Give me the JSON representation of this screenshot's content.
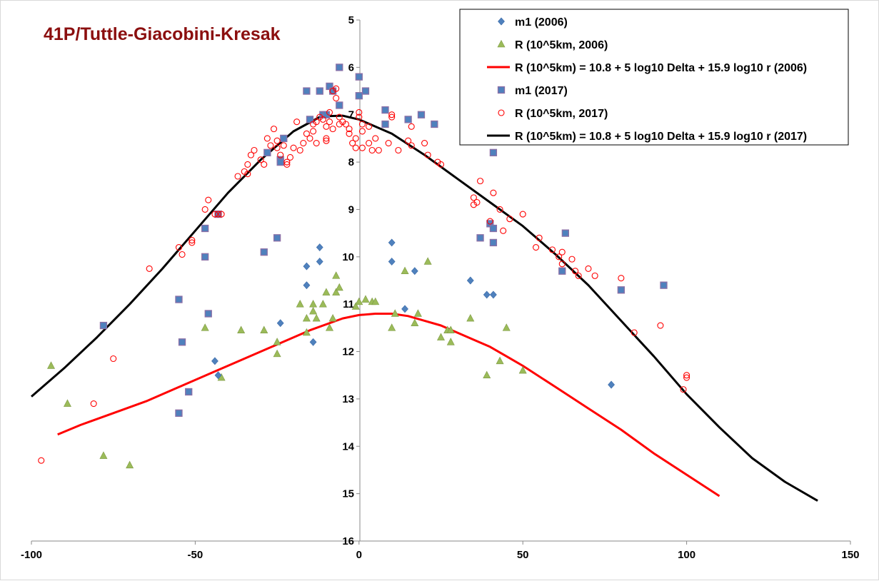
{
  "chart_data": {
    "type": "scatter",
    "title": "41P/Tuttle-Giacobini-Kresak",
    "xlabel": "",
    "ylabel": "",
    "xlim": [
      -100,
      150
    ],
    "ylim": [
      16,
      5
    ],
    "y_reversed": true,
    "grid": false,
    "legend_position": "top-right",
    "x_ticks": [
      -100,
      -50,
      0,
      50,
      100,
      150
    ],
    "y_ticks": [
      5,
      6,
      7,
      8,
      9,
      10,
      11,
      12,
      13,
      14,
      15,
      16
    ],
    "series": [
      {
        "name": "m1 (2006)",
        "marker": "diamond",
        "color": "#4f81bd",
        "points": [
          [
            -16,
            10.2
          ],
          [
            -16,
            10.6
          ],
          [
            -12,
            9.8
          ],
          [
            -12,
            10.1
          ],
          [
            -14,
            11.8
          ],
          [
            -24,
            11.4
          ],
          [
            -44,
            12.2
          ],
          [
            -43,
            12.5
          ],
          [
            10,
            9.7
          ],
          [
            10,
            10.1
          ],
          [
            17,
            10.3
          ],
          [
            14,
            11.1
          ],
          [
            34,
            10.5
          ],
          [
            39,
            10.8
          ],
          [
            41,
            10.8
          ],
          [
            77,
            12.7
          ]
        ]
      },
      {
        "name": "R (10^5km, 2006)",
        "marker": "triangle",
        "color": "#9bbb59",
        "points": [
          [
            -94,
            12.3
          ],
          [
            -89,
            13.1
          ],
          [
            -78,
            14.2
          ],
          [
            -70,
            14.4
          ],
          [
            -47,
            11.5
          ],
          [
            -42,
            12.55
          ],
          [
            -36,
            11.55
          ],
          [
            -29,
            11.55
          ],
          [
            -25,
            11.8
          ],
          [
            -25,
            12.05
          ],
          [
            -18,
            11.0
          ],
          [
            -16,
            11.3
          ],
          [
            -16,
            11.6
          ],
          [
            -14,
            11.0
          ],
          [
            -14,
            11.15
          ],
          [
            -13,
            11.3
          ],
          [
            -11,
            11.0
          ],
          [
            -10,
            10.75
          ],
          [
            -9,
            11.5
          ],
          [
            -8,
            11.3
          ],
          [
            -7,
            10.4
          ],
          [
            -7,
            10.75
          ],
          [
            -6,
            10.65
          ],
          [
            -1,
            11.05
          ],
          [
            0,
            10.95
          ],
          [
            2,
            10.9
          ],
          [
            4,
            10.95
          ],
          [
            5,
            10.95
          ],
          [
            10,
            11.5
          ],
          [
            11,
            11.2
          ],
          [
            14,
            10.3
          ],
          [
            17,
            11.4
          ],
          [
            18,
            11.2
          ],
          [
            21,
            10.1
          ],
          [
            25,
            11.7
          ],
          [
            27,
            11.55
          ],
          [
            28,
            11.55
          ],
          [
            28,
            11.8
          ],
          [
            34,
            11.3
          ],
          [
            39,
            12.5
          ],
          [
            43,
            12.2
          ],
          [
            45,
            11.5
          ],
          [
            50,
            12.4
          ]
        ]
      },
      {
        "name": "R (10^5km) = 10.8 + 5 log10 Delta + 15.9 log10 r (2006)",
        "marker": "line",
        "color": "#ff0000",
        "points": [
          [
            -92,
            13.75
          ],
          [
            -85,
            13.55
          ],
          [
            -75,
            13.3
          ],
          [
            -65,
            13.05
          ],
          [
            -55,
            12.75
          ],
          [
            -45,
            12.45
          ],
          [
            -35,
            12.15
          ],
          [
            -25,
            11.85
          ],
          [
            -15,
            11.55
          ],
          [
            -5,
            11.3
          ],
          [
            0,
            11.23
          ],
          [
            5,
            11.2
          ],
          [
            10,
            11.2
          ],
          [
            15,
            11.25
          ],
          [
            20,
            11.35
          ],
          [
            25,
            11.45
          ],
          [
            30,
            11.6
          ],
          [
            35,
            11.75
          ],
          [
            40,
            11.9
          ],
          [
            45,
            12.1
          ],
          [
            50,
            12.3
          ],
          [
            60,
            12.75
          ],
          [
            70,
            13.2
          ],
          [
            80,
            13.65
          ],
          [
            90,
            14.15
          ],
          [
            100,
            14.6
          ],
          [
            110,
            15.05
          ]
        ]
      },
      {
        "name": "m1 (2017)",
        "marker": "square",
        "color": "#4f81bd",
        "points": [
          [
            -78,
            11.45
          ],
          [
            -55,
            10.9
          ],
          [
            -55,
            13.3
          ],
          [
            -54,
            11.8
          ],
          [
            -52,
            12.85
          ],
          [
            -47,
            9.4
          ],
          [
            -47,
            10.0
          ],
          [
            -46,
            11.2
          ],
          [
            -43,
            9.1
          ],
          [
            -29,
            9.9
          ],
          [
            -28,
            7.8
          ],
          [
            -25,
            9.6
          ],
          [
            -24,
            7.95
          ],
          [
            -24,
            8.0
          ],
          [
            -23,
            7.5
          ],
          [
            -16,
            6.5
          ],
          [
            -15,
            7.1
          ],
          [
            -12,
            6.5
          ],
          [
            -11,
            7.0
          ],
          [
            -10,
            7.0
          ],
          [
            -9,
            6.4
          ],
          [
            -8,
            6.5
          ],
          [
            -6,
            6.8
          ],
          [
            -6,
            6.0
          ],
          [
            0,
            6.2
          ],
          [
            0,
            6.6
          ],
          [
            2,
            6.5
          ],
          [
            8,
            6.9
          ],
          [
            8,
            7.2
          ],
          [
            15,
            7.1
          ],
          [
            19,
            7.0
          ],
          [
            23,
            7.2
          ],
          [
            37,
            9.6
          ],
          [
            40,
            9.3
          ],
          [
            41,
            9.4
          ],
          [
            41,
            9.7
          ],
          [
            41,
            7.8
          ],
          [
            63,
            9.5
          ],
          [
            62,
            10.3
          ],
          [
            80,
            10.7
          ],
          [
            93,
            10.6
          ]
        ]
      },
      {
        "name": "R (10^5km, 2017)",
        "marker": "circle-open",
        "color": "#ff0000",
        "points": [
          [
            -97,
            14.3
          ],
          [
            -81,
            13.1
          ],
          [
            -75,
            12.15
          ],
          [
            -64,
            10.25
          ],
          [
            -55,
            9.8
          ],
          [
            -54,
            9.95
          ],
          [
            -51,
            9.7
          ],
          [
            -51,
            9.65
          ],
          [
            -47,
            9.0
          ],
          [
            -46,
            8.8
          ],
          [
            -44,
            9.1
          ],
          [
            -43,
            9.1
          ],
          [
            -42,
            9.1
          ],
          [
            -37,
            8.3
          ],
          [
            -35,
            8.2
          ],
          [
            -34,
            8.25
          ],
          [
            -34,
            8.05
          ],
          [
            -33,
            7.85
          ],
          [
            -32,
            7.75
          ],
          [
            -30,
            7.95
          ],
          [
            -29,
            8.05
          ],
          [
            -28,
            7.5
          ],
          [
            -27,
            7.65
          ],
          [
            -26,
            7.3
          ],
          [
            -25,
            7.55
          ],
          [
            -25,
            7.7
          ],
          [
            -24,
            7.85
          ],
          [
            -23,
            7.65
          ],
          [
            -22,
            8.05
          ],
          [
            -22,
            8.0
          ],
          [
            -21,
            7.9
          ],
          [
            -20,
            7.7
          ],
          [
            -19,
            7.15
          ],
          [
            -18,
            7.75
          ],
          [
            -17,
            7.6
          ],
          [
            -16,
            7.4
          ],
          [
            -15,
            7.5
          ],
          [
            -14,
            7.2
          ],
          [
            -14,
            7.35
          ],
          [
            -13,
            7.15
          ],
          [
            -13,
            7.6
          ],
          [
            -12,
            7.05
          ],
          [
            -11,
            7.1
          ],
          [
            -10,
            7.25
          ],
          [
            -10,
            7.5
          ],
          [
            -10,
            7.55
          ],
          [
            -9,
            6.95
          ],
          [
            -9,
            7.15
          ],
          [
            -8,
            7.3
          ],
          [
            -8,
            6.5
          ],
          [
            -7,
            6.45
          ],
          [
            -7,
            6.65
          ],
          [
            -6,
            7.05
          ],
          [
            -6,
            7.2
          ],
          [
            -5,
            7.15
          ],
          [
            -4,
            7.2
          ],
          [
            -3,
            7.3
          ],
          [
            -3,
            7.4
          ],
          [
            -2,
            7.6
          ],
          [
            -1,
            7.7
          ],
          [
            -1,
            7.5
          ],
          [
            0,
            6.95
          ],
          [
            0,
            7.05
          ],
          [
            1,
            7.2
          ],
          [
            1,
            7.35
          ],
          [
            1,
            7.7
          ],
          [
            3,
            7.25
          ],
          [
            3,
            7.6
          ],
          [
            4,
            7.75
          ],
          [
            5,
            7.5
          ],
          [
            6,
            7.75
          ],
          [
            9,
            7.6
          ],
          [
            10,
            7.0
          ],
          [
            10,
            7.05
          ],
          [
            12,
            7.75
          ],
          [
            15,
            7.55
          ],
          [
            16,
            7.25
          ],
          [
            16,
            7.65
          ],
          [
            20,
            7.6
          ],
          [
            21,
            7.85
          ],
          [
            24,
            8.0
          ],
          [
            25,
            8.05
          ],
          [
            35,
            8.75
          ],
          [
            35,
            8.9
          ],
          [
            36,
            8.85
          ],
          [
            37,
            8.4
          ],
          [
            40,
            9.25
          ],
          [
            41,
            8.65
          ],
          [
            43,
            9.0
          ],
          [
            44,
            9.45
          ],
          [
            46,
            9.2
          ],
          [
            50,
            9.1
          ],
          [
            54,
            9.8
          ],
          [
            55,
            9.6
          ],
          [
            59,
            9.85
          ],
          [
            61,
            10.0
          ],
          [
            62,
            9.9
          ],
          [
            62,
            10.15
          ],
          [
            65,
            10.05
          ],
          [
            66,
            10.3
          ],
          [
            67,
            10.4
          ],
          [
            70,
            10.25
          ],
          [
            72,
            10.4
          ],
          [
            80,
            10.45
          ],
          [
            84,
            11.6
          ],
          [
            92,
            11.45
          ],
          [
            99,
            12.8
          ],
          [
            100,
            12.5
          ],
          [
            100,
            12.55
          ]
        ]
      },
      {
        "name": "R (10^5km) = 10.8 + 5 log10 Delta + 15.9 log10 r (2017)",
        "marker": "line",
        "color": "#000000",
        "points": [
          [
            -100,
            12.95
          ],
          [
            -90,
            12.35
          ],
          [
            -80,
            11.7
          ],
          [
            -70,
            11.0
          ],
          [
            -60,
            10.25
          ],
          [
            -50,
            9.45
          ],
          [
            -40,
            8.65
          ],
          [
            -30,
            7.95
          ],
          [
            -20,
            7.35
          ],
          [
            -12,
            7.05
          ],
          [
            -10,
            7.03
          ],
          [
            -5,
            7.02
          ],
          [
            0,
            7.1
          ],
          [
            10,
            7.4
          ],
          [
            20,
            7.85
          ],
          [
            30,
            8.35
          ],
          [
            40,
            8.85
          ],
          [
            50,
            9.35
          ],
          [
            60,
            9.95
          ],
          [
            70,
            10.6
          ],
          [
            80,
            11.35
          ],
          [
            90,
            12.1
          ],
          [
            100,
            12.9
          ],
          [
            110,
            13.6
          ],
          [
            120,
            14.25
          ],
          [
            130,
            14.75
          ],
          [
            140,
            15.15
          ]
        ]
      }
    ]
  }
}
